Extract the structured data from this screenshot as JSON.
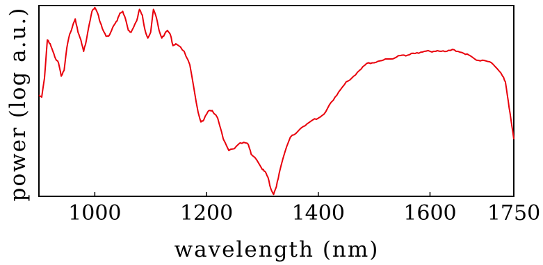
{
  "chart_data": {
    "type": "line",
    "xlabel": "wavelength (nm)",
    "ylabel": "power (log a.u.)",
    "xlim": [
      900,
      1750
    ],
    "ylim": [
      0,
      1
    ],
    "x_ticks": [
      1000,
      1200,
      1400,
      1600,
      1750
    ],
    "x_tick_labels": [
      "1000",
      "1200",
      "1400",
      "1600",
      "1750"
    ],
    "y_tick_labels": [],
    "grid": false,
    "legend": "none",
    "line_color": "#e8000b",
    "series": [
      {
        "x": [
          900,
          905,
          910,
          915,
          920,
          925,
          930,
          935,
          940,
          945,
          950,
          955,
          960,
          965,
          970,
          975,
          980,
          985,
          990,
          995,
          1000,
          1005,
          1010,
          1015,
          1020,
          1025,
          1030,
          1035,
          1040,
          1045,
          1050,
          1055,
          1060,
          1065,
          1070,
          1075,
          1080,
          1085,
          1090,
          1095,
          1100,
          1105,
          1110,
          1115,
          1120,
          1125,
          1130,
          1135,
          1140,
          1145,
          1150,
          1160,
          1170,
          1180,
          1185,
          1190,
          1195,
          1200,
          1205,
          1210,
          1220,
          1230,
          1240,
          1250,
          1260,
          1270,
          1275,
          1280,
          1290,
          1300,
          1305,
          1310,
          1315,
          1320,
          1325,
          1330,
          1340,
          1350,
          1360,
          1370,
          1380,
          1390,
          1400,
          1410,
          1420,
          1430,
          1440,
          1450,
          1460,
          1470,
          1480,
          1490,
          1500,
          1510,
          1520,
          1530,
          1540,
          1550,
          1560,
          1570,
          1580,
          1590,
          1600,
          1610,
          1620,
          1630,
          1640,
          1650,
          1660,
          1670,
          1680,
          1690,
          1700,
          1710,
          1720,
          1730,
          1735,
          1740,
          1745,
          1750
        ],
        "y": [
          0.53,
          0.52,
          0.62,
          0.82,
          0.8,
          0.76,
          0.72,
          0.7,
          0.63,
          0.66,
          0.78,
          0.85,
          0.89,
          0.93,
          0.86,
          0.82,
          0.76,
          0.82,
          0.9,
          0.97,
          0.99,
          0.96,
          0.91,
          0.87,
          0.84,
          0.84,
          0.87,
          0.9,
          0.92,
          0.96,
          0.97,
          0.93,
          0.87,
          0.86,
          0.89,
          0.92,
          0.98,
          0.95,
          0.87,
          0.83,
          0.86,
          0.98,
          0.94,
          0.87,
          0.83,
          0.85,
          0.87,
          0.85,
          0.79,
          0.8,
          0.79,
          0.76,
          0.69,
          0.52,
          0.44,
          0.39,
          0.4,
          0.43,
          0.45,
          0.45,
          0.41,
          0.3,
          0.24,
          0.25,
          0.28,
          0.28,
          0.27,
          0.22,
          0.19,
          0.14,
          0.13,
          0.1,
          0.04,
          0.01,
          0.05,
          0.12,
          0.23,
          0.31,
          0.33,
          0.36,
          0.38,
          0.4,
          0.41,
          0.43,
          0.48,
          0.52,
          0.56,
          0.6,
          0.62,
          0.65,
          0.68,
          0.7,
          0.7,
          0.71,
          0.72,
          0.72,
          0.73,
          0.74,
          0.74,
          0.75,
          0.75,
          0.76,
          0.76,
          0.76,
          0.76,
          0.76,
          0.77,
          0.76,
          0.75,
          0.74,
          0.72,
          0.71,
          0.71,
          0.7,
          0.67,
          0.63,
          0.6,
          0.5,
          0.4,
          0.3
        ]
      }
    ]
  }
}
